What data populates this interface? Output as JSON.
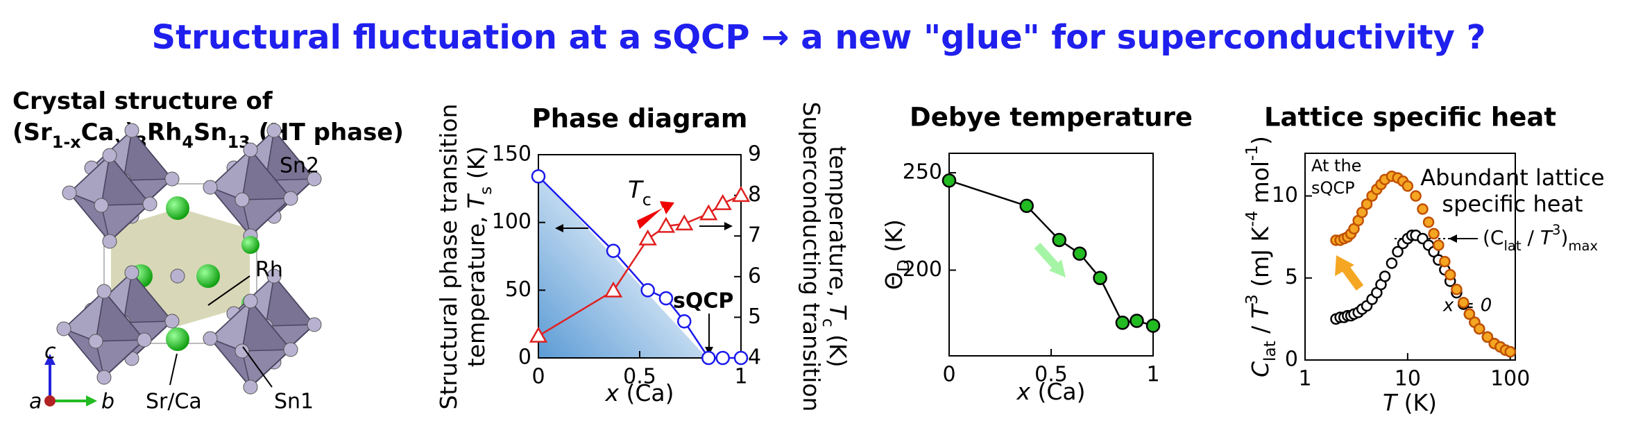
{
  "title": "Structural fluctuation at a sQCP → a new \"glue\" for superconductivity ?",
  "crystal": {
    "heading": [
      "Crystal structure of",
      "(Sr",
      "1-x",
      "Ca",
      "x",
      ")",
      "3",
      "Rh",
      "4",
      "Sn",
      "13",
      " (HT phase)"
    ],
    "labels": [
      "Sn2",
      "Rh",
      "Sr/Ca",
      "Sn1",
      "a",
      "b",
      "c"
    ]
  },
  "chart_data": [
    {
      "type": "line",
      "title": "Phase diagram",
      "xlabel": [
        "x",
        " (Ca)"
      ],
      "ylabel": [
        "Structural phase transition",
        "temperature, ",
        "T",
        "s",
        " (K)"
      ],
      "y2label": [
        "Superconducting transition",
        "temperature, ",
        "T",
        "c",
        " (K)"
      ],
      "x": [
        0,
        0.37,
        0.54,
        0.63,
        0.72,
        0.84,
        0.91,
        1
      ],
      "xlim": [
        0,
        1
      ],
      "xticks": [
        0,
        0.5,
        1
      ],
      "ylim": [
        0,
        150
      ],
      "yticks": [
        0,
        50,
        100,
        150
      ],
      "y2lim": [
        4,
        9
      ],
      "y2ticks": [
        4,
        5,
        6,
        7,
        8,
        9
      ],
      "series": [
        {
          "color": "#1a1aee",
          "markerfill": "#ffffff",
          "marker": "circle",
          "values": [
            134,
            79,
            50,
            44,
            27,
            0,
            0,
            0
          ]
        },
        {
          "color": "#e02020",
          "markerfill": "#ffffff",
          "marker": "triangle",
          "axis": "y2",
          "values": [
            4.54,
            5.65,
            6.93,
            7.24,
            7.3,
            7.55,
            7.8,
            8.0
          ]
        }
      ],
      "annotations": [
        [
          "T",
          "c"
        ],
        "sQCP"
      ]
    },
    {
      "type": "line",
      "title": "Debye temperature",
      "xlabel": [
        "x",
        " (Ca)"
      ],
      "ylabel": [
        "Θ",
        "D",
        " (K)"
      ],
      "x": [
        0,
        0.38,
        0.54,
        0.64,
        0.74,
        0.85,
        0.92,
        1
      ],
      "xlim": [
        0,
        1
      ],
      "xticks": [
        0,
        0.5,
        1
      ],
      "ylim": [
        156,
        260
      ],
      "yticks": [
        200,
        250
      ],
      "series": [
        {
          "color": "#000000",
          "markerfill": "#22bb22",
          "marker": "circle",
          "values": [
            246,
            233,
            215.5,
            208.5,
            196,
            173,
            174,
            171.5
          ]
        }
      ]
    },
    {
      "type": "scatter",
      "title": "Lattice specific heat",
      "xscale": "log",
      "xlabel": [
        "T",
        " (K)"
      ],
      "ylabel": [
        "C",
        "lat",
        " / ",
        "T",
        "3",
        " (mJ K",
        "-4",
        " mol",
        "-1",
        ")"
      ],
      "xlim": [
        1,
        112
      ],
      "xticks": [
        1,
        10,
        100
      ],
      "ylim": [
        0,
        12.6
      ],
      "yticks": [
        0,
        5,
        10
      ],
      "series": [
        {
          "color": "#000000",
          "markerfill": "#ffffff",
          "marker": "circle",
          "x": [
            2,
            2.2,
            2.4,
            2.6,
            2.8,
            3,
            3.3,
            3.6,
            4,
            4.5,
            5,
            5.5,
            6,
            7,
            8,
            9,
            10,
            11,
            12,
            14,
            16,
            18,
            20,
            23,
            26,
            30,
            35,
            40,
            45,
            50,
            60,
            70,
            80,
            90,
            100
          ],
          "values": [
            2.5,
            2.6,
            2.6,
            2.7,
            2.7,
            2.8,
            2.9,
            3.1,
            3.3,
            3.7,
            4.1,
            4.6,
            5.1,
            5.9,
            6.6,
            7.1,
            7.4,
            7.6,
            7.6,
            7.4,
            7.0,
            6.6,
            6.1,
            5.5,
            4.8,
            4.1,
            3.4,
            2.8,
            2.3,
            1.9,
            1.4,
            1.0,
            0.8,
            0.6,
            0.5
          ]
        },
        {
          "color": "#c05000",
          "markerfill": "#f5a623",
          "marker": "circle",
          "x": [
            2,
            2.2,
            2.4,
            2.6,
            2.8,
            3,
            3.3,
            3.6,
            4,
            4.5,
            5,
            5.5,
            6,
            7,
            8,
            9,
            10,
            12,
            14,
            16,
            18,
            20,
            23,
            26,
            30,
            35,
            40,
            45,
            50,
            60,
            70,
            80,
            90,
            100
          ],
          "values": [
            7.3,
            7.3,
            7.4,
            7.5,
            7.7,
            8.0,
            8.5,
            9.0,
            9.5,
            10.0,
            10.4,
            10.7,
            11.0,
            11.2,
            11.1,
            10.9,
            10.6,
            10.0,
            9.2,
            8.4,
            7.7,
            7.0,
            6.0,
            5.2,
            4.3,
            3.5,
            2.8,
            2.3,
            1.9,
            1.4,
            1.0,
            0.8,
            0.6,
            0.5
          ]
        }
      ],
      "annotations": [
        "At the",
        "sQCP",
        "Abundant lattice",
        "specific heat",
        [
          "(C",
          "lat",
          " / ",
          "T",
          "3",
          ")",
          "max"
        ],
        "x = 0"
      ]
    }
  ]
}
